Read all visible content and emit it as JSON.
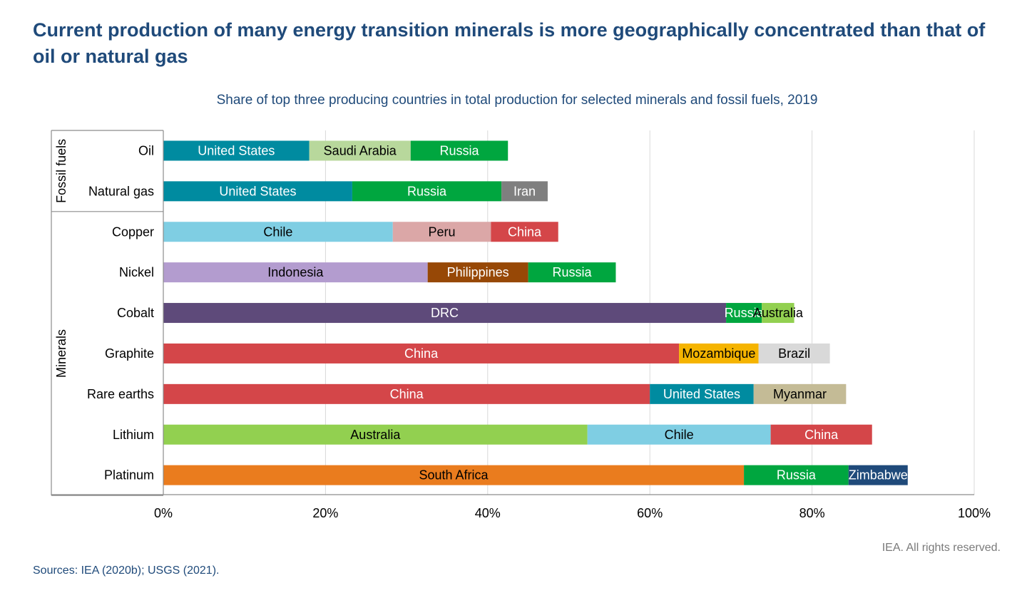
{
  "title": "Current production of many energy transition minerals is more geographically concentrated than that of oil or natural gas",
  "subtitle": "Share of top three producing countries in total production for selected minerals and fossil fuels, 2019",
  "rights": "IEA. All rights reserved.",
  "sources": "Sources: IEA (2020b); USGS (2021).",
  "chart_data": {
    "type": "bar",
    "orientation": "horizontal",
    "stacked": true,
    "xlim": [
      0,
      100
    ],
    "x_ticks": [
      "0%",
      "20%",
      "40%",
      "60%",
      "80%",
      "100%"
    ],
    "grid": true,
    "groups": [
      {
        "name": "Fossil fuels",
        "categories": [
          "Oil",
          "Natural gas"
        ]
      },
      {
        "name": "Minerals",
        "categories": [
          "Copper",
          "Nickel",
          "Cobalt",
          "Graphite",
          "Rare earths",
          "Lithium",
          "Platinum"
        ]
      }
    ],
    "categories": [
      "Oil",
      "Natural gas",
      "Copper",
      "Nickel",
      "Cobalt",
      "Graphite",
      "Rare earths",
      "Lithium",
      "Platinum"
    ],
    "rows": [
      {
        "category": "Oil",
        "segments": [
          {
            "country": "United States",
            "value": 18,
            "color": "#008ba0"
          },
          {
            "country": "Saudi Arabia",
            "value": 12.5,
            "color": "#b8d89c"
          },
          {
            "country": "Russia",
            "value": 12,
            "color": "#00a63f"
          }
        ]
      },
      {
        "category": "Natural gas",
        "segments": [
          {
            "country": "United States",
            "value": 23.3,
            "color": "#008ba0"
          },
          {
            "country": "Russia",
            "value": 18.4,
            "color": "#00a63f"
          },
          {
            "country": "Iran",
            "value": 5.7,
            "color": "#7f7f7f"
          }
        ]
      },
      {
        "category": "Copper",
        "segments": [
          {
            "country": "Chile",
            "value": 28.3,
            "color": "#7fcee3"
          },
          {
            "country": "Peru",
            "value": 12.1,
            "color": "#dba7a7"
          },
          {
            "country": "China",
            "value": 8.3,
            "color": "#d44649"
          }
        ]
      },
      {
        "category": "Nickel",
        "segments": [
          {
            "country": "Indonesia",
            "value": 32.6,
            "color": "#b39ccf"
          },
          {
            "country": "Philippines",
            "value": 12.4,
            "color": "#974806"
          },
          {
            "country": "Russia",
            "value": 10.8,
            "color": "#00a63f"
          }
        ]
      },
      {
        "category": "Cobalt",
        "segments": [
          {
            "country": "DRC",
            "value": 69.4,
            "color": "#5e4a7a"
          },
          {
            "country": "Russia",
            "value": 4.4,
            "color": "#00a63f"
          },
          {
            "country": "Australia",
            "value": 4.0,
            "color": "#92d050"
          }
        ]
      },
      {
        "category": "Graphite",
        "segments": [
          {
            "country": "China",
            "value": 63.6,
            "color": "#d44649"
          },
          {
            "country": "Mozambique",
            "value": 9.8,
            "color": "#f5b400"
          },
          {
            "country": "Brazil",
            "value": 8.8,
            "color": "#d9d9d9"
          }
        ]
      },
      {
        "category": "Rare earths",
        "segments": [
          {
            "country": "China",
            "value": 60.0,
            "color": "#d44649"
          },
          {
            "country": "United States",
            "value": 12.8,
            "color": "#008ba0"
          },
          {
            "country": "Myanmar",
            "value": 11.4,
            "color": "#c4bb96"
          }
        ]
      },
      {
        "category": "Lithium",
        "segments": [
          {
            "country": "Australia",
            "value": 52.3,
            "color": "#92d050"
          },
          {
            "country": "Chile",
            "value": 22.6,
            "color": "#7fcee3"
          },
          {
            "country": "China",
            "value": 12.5,
            "color": "#d44649"
          }
        ]
      },
      {
        "category": "Platinum",
        "segments": [
          {
            "country": "South Africa",
            "value": 71.6,
            "color": "#ea7c1e"
          },
          {
            "country": "Russia",
            "value": 12.9,
            "color": "#00a63f"
          },
          {
            "country": "Zimbabwe",
            "value": 7.3,
            "color": "#1f4a7a"
          }
        ]
      }
    ]
  }
}
